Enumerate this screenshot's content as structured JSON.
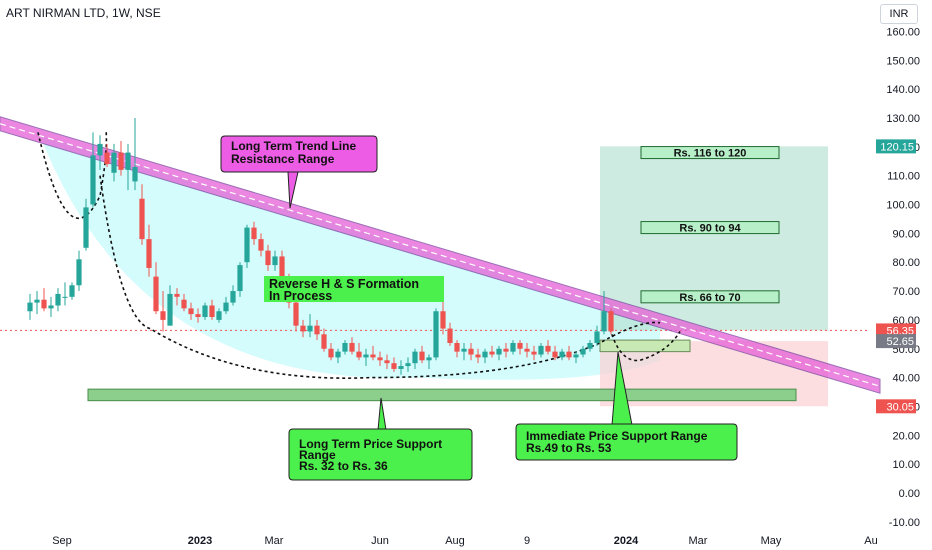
{
  "header": {
    "title": "ART NIRMAN LTD, 1W, NSE"
  },
  "unit_label": "INR",
  "colors": {
    "up": "#26a69a",
    "down": "#ef5350",
    "trend_band": "#e55fd6",
    "shade": "#ccfbfb",
    "target_zone": "#b2e0cf",
    "stop_zone": "#fbd0d3",
    "support_zone": "#8ccf8c",
    "callout_magenta": "#ec5ce5",
    "callout_green": "#4cf04c"
  },
  "chart_data": {
    "type": "candlestick",
    "title": "ART NIRMAN LTD, 1W, NSE",
    "x_ticks": [
      "Sep",
      "2023",
      "Mar",
      "Jun",
      "Aug",
      "9",
      "2024",
      "Mar",
      "May",
      "Au"
    ],
    "y_ticks": [
      -10,
      0,
      10,
      20,
      30,
      40,
      50,
      60,
      70,
      80,
      90,
      100,
      110,
      120,
      130,
      140,
      150,
      160
    ],
    "ylim": [
      -13,
      168
    ],
    "price_tags": [
      {
        "value": 120.15,
        "label": "120.15",
        "color": "#26a69a"
      },
      {
        "value": 56.35,
        "label": "56.35",
        "color": "#ef5350"
      },
      {
        "value": 52.65,
        "label": "52.65",
        "color": "#787b86"
      },
      {
        "value": 30.05,
        "label": "30.05",
        "color": "#ef5350"
      }
    ],
    "candles": [
      {
        "o": 63,
        "h": 69,
        "l": 60,
        "c": 66
      },
      {
        "o": 66,
        "h": 70,
        "l": 62,
        "c": 67
      },
      {
        "o": 67,
        "h": 71,
        "l": 63,
        "c": 64
      },
      {
        "o": 64,
        "h": 68,
        "l": 61,
        "c": 65
      },
      {
        "o": 65,
        "h": 71,
        "l": 63,
        "c": 69
      },
      {
        "o": 68,
        "h": 73,
        "l": 65,
        "c": 68
      },
      {
        "o": 68,
        "h": 73,
        "l": 67,
        "c": 72
      },
      {
        "o": 72,
        "h": 84,
        "l": 70,
        "c": 81
      },
      {
        "o": 85,
        "h": 102,
        "l": 84,
        "c": 99
      },
      {
        "o": 100,
        "h": 125,
        "l": 99,
        "c": 117
      },
      {
        "o": 117,
        "h": 124,
        "l": 112,
        "c": 121
      },
      {
        "o": 118,
        "h": 121,
        "l": 113,
        "c": 114
      },
      {
        "o": 111,
        "h": 121,
        "l": 108,
        "c": 118
      },
      {
        "o": 118,
        "h": 122,
        "l": 110,
        "c": 112
      },
      {
        "o": 112,
        "h": 121,
        "l": 105,
        "c": 118
      },
      {
        "o": 108,
        "h": 130,
        "l": 105,
        "c": 113
      },
      {
        "o": 102,
        "h": 107,
        "l": 86,
        "c": 88
      },
      {
        "o": 88,
        "h": 93,
        "l": 75,
        "c": 78
      },
      {
        "o": 75,
        "h": 80,
        "l": 62,
        "c": 63
      },
      {
        "o": 63,
        "h": 70,
        "l": 56,
        "c": 60
      },
      {
        "o": 58,
        "h": 72,
        "l": 58,
        "c": 69
      },
      {
        "o": 69,
        "h": 71,
        "l": 65,
        "c": 68
      },
      {
        "o": 67,
        "h": 69,
        "l": 63,
        "c": 64
      },
      {
        "o": 64,
        "h": 66,
        "l": 60,
        "c": 62
      },
      {
        "o": 62,
        "h": 64,
        "l": 59,
        "c": 61
      },
      {
        "o": 61,
        "h": 66,
        "l": 60,
        "c": 65
      },
      {
        "o": 65,
        "h": 67,
        "l": 60,
        "c": 61
      },
      {
        "o": 60,
        "h": 64,
        "l": 59,
        "c": 63
      },
      {
        "o": 63,
        "h": 68,
        "l": 62,
        "c": 66
      },
      {
        "o": 66,
        "h": 72,
        "l": 65,
        "c": 70
      },
      {
        "o": 70,
        "h": 80,
        "l": 68,
        "c": 79
      },
      {
        "o": 80,
        "h": 93,
        "l": 78,
        "c": 92
      },
      {
        "o": 92,
        "h": 94,
        "l": 86,
        "c": 88
      },
      {
        "o": 88,
        "h": 90,
        "l": 82,
        "c": 84
      },
      {
        "o": 84,
        "h": 86,
        "l": 77,
        "c": 79
      },
      {
        "o": 79,
        "h": 84,
        "l": 77,
        "c": 82
      },
      {
        "o": 82,
        "h": 84,
        "l": 73,
        "c": 75
      },
      {
        "o": 74,
        "h": 76,
        "l": 64,
        "c": 66
      },
      {
        "o": 66,
        "h": 68,
        "l": 56,
        "c": 58
      },
      {
        "o": 58,
        "h": 60,
        "l": 54,
        "c": 56
      },
      {
        "o": 56,
        "h": 62,
        "l": 54,
        "c": 58
      },
      {
        "o": 58,
        "h": 60,
        "l": 53,
        "c": 55
      },
      {
        "o": 55,
        "h": 57,
        "l": 49,
        "c": 50
      },
      {
        "o": 50,
        "h": 52,
        "l": 46,
        "c": 47
      },
      {
        "o": 47,
        "h": 50,
        "l": 45,
        "c": 49
      },
      {
        "o": 49,
        "h": 53,
        "l": 48,
        "c": 52
      },
      {
        "o": 52,
        "h": 54,
        "l": 48,
        "c": 49
      },
      {
        "o": 49,
        "h": 52,
        "l": 46,
        "c": 47
      },
      {
        "o": 47,
        "h": 50,
        "l": 44,
        "c": 48
      },
      {
        "o": 48,
        "h": 51,
        "l": 46,
        "c": 47
      },
      {
        "o": 47,
        "h": 49,
        "l": 44,
        "c": 46
      },
      {
        "o": 46,
        "h": 48,
        "l": 43,
        "c": 45
      },
      {
        "o": 45,
        "h": 47,
        "l": 42,
        "c": 43
      },
      {
        "o": 43,
        "h": 46,
        "l": 41,
        "c": 44
      },
      {
        "o": 44,
        "h": 47,
        "l": 42,
        "c": 45
      },
      {
        "o": 45,
        "h": 50,
        "l": 43,
        "c": 49
      },
      {
        "o": 49,
        "h": 51,
        "l": 45,
        "c": 46
      },
      {
        "o": 46,
        "h": 48,
        "l": 43,
        "c": 47
      },
      {
        "o": 47,
        "h": 64,
        "l": 46,
        "c": 63
      },
      {
        "o": 63,
        "h": 70,
        "l": 55,
        "c": 57
      },
      {
        "o": 57,
        "h": 59,
        "l": 51,
        "c": 52
      },
      {
        "o": 52,
        "h": 53,
        "l": 47,
        "c": 49
      },
      {
        "o": 49,
        "h": 52,
        "l": 46,
        "c": 50
      },
      {
        "o": 50,
        "h": 52,
        "l": 46,
        "c": 48
      },
      {
        "o": 48,
        "h": 50,
        "l": 45,
        "c": 47
      },
      {
        "o": 47,
        "h": 50,
        "l": 45,
        "c": 49
      },
      {
        "o": 49,
        "h": 51,
        "l": 47,
        "c": 48
      },
      {
        "o": 48,
        "h": 51,
        "l": 46,
        "c": 50
      },
      {
        "o": 50,
        "h": 52,
        "l": 47,
        "c": 49
      },
      {
        "o": 49,
        "h": 53,
        "l": 48,
        "c": 52
      },
      {
        "o": 52,
        "h": 53,
        "l": 48,
        "c": 50
      },
      {
        "o": 50,
        "h": 52,
        "l": 47,
        "c": 49
      },
      {
        "o": 49,
        "h": 51,
        "l": 46,
        "c": 48
      },
      {
        "o": 48,
        "h": 52,
        "l": 47,
        "c": 51
      },
      {
        "o": 51,
        "h": 53,
        "l": 48,
        "c": 49
      },
      {
        "o": 49,
        "h": 51,
        "l": 46,
        "c": 47
      },
      {
        "o": 47,
        "h": 50,
        "l": 46,
        "c": 49
      },
      {
        "o": 49,
        "h": 51,
        "l": 46,
        "c": 47
      },
      {
        "o": 47,
        "h": 49,
        "l": 45,
        "c": 48
      },
      {
        "o": 48,
        "h": 51,
        "l": 47,
        "c": 50
      },
      {
        "o": 50,
        "h": 53,
        "l": 49,
        "c": 52
      },
      {
        "o": 52,
        "h": 58,
        "l": 51,
        "c": 56
      },
      {
        "o": 56,
        "h": 70,
        "l": 55,
        "c": 63
      },
      {
        "o": 63,
        "h": 64,
        "l": 55,
        "c": 56
      }
    ],
    "annotations": {
      "trend_callout": {
        "lines": [
          "Long Term Trend Line",
          "Resistance Range"
        ]
      },
      "pattern_label": {
        "lines": [
          "Reverse H & S Formation",
          "In Process"
        ]
      },
      "support_callout": {
        "lines": [
          "Long Term Price Support",
          "Range",
          "Rs. 32 to Rs. 36"
        ]
      },
      "immediate_callout": {
        "lines": [
          "Immediate Price Support Range",
          "Rs.49  to Rs. 53"
        ]
      },
      "targets": [
        {
          "label": "Rs. 116 to 120"
        },
        {
          "label": "Rs. 90 to 94"
        },
        {
          "label": "Rs. 66 to 70"
        }
      ]
    }
  }
}
